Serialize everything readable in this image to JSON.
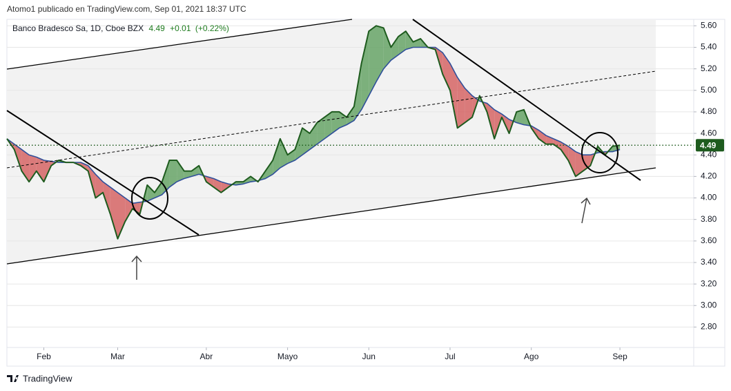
{
  "header": {
    "publisher": "Atomo1 publicado en TradingView.com, Sep 01, 2021 18:37 UTC"
  },
  "chart_data": {
    "type": "line",
    "symbol": "Banco Bradesco Sa, 1D, Cboe BZX",
    "quote": "4.49",
    "change": "+0.01",
    "change_pct": "(+0.22%)",
    "categories": [
      null,
      null,
      null,
      null,
      null,
      "Feb",
      null,
      null,
      null,
      null,
      null,
      null,
      null,
      null,
      null,
      "Mar",
      null,
      null,
      null,
      null,
      null,
      null,
      null,
      null,
      null,
      null,
      null,
      "Abr",
      null,
      null,
      null,
      null,
      null,
      null,
      null,
      null,
      null,
      null,
      "Mayo",
      null,
      null,
      null,
      null,
      null,
      null,
      null,
      null,
      null,
      null,
      "Jun",
      null,
      null,
      null,
      null,
      null,
      null,
      null,
      null,
      null,
      null,
      "Jul",
      null,
      null,
      null,
      null,
      null,
      null,
      null,
      null,
      null,
      null,
      "Ago",
      null,
      null,
      null,
      null,
      null,
      null,
      null,
      null,
      null,
      null,
      null,
      "Sep",
      null,
      null,
      null,
      null,
      null,
      null,
      null,
      null,
      null,
      null
    ],
    "series": [
      {
        "color": "#1e5b1e",
        "values": [
          4.55,
          4.45,
          4.25,
          4.15,
          4.25,
          4.15,
          4.3,
          4.35,
          4.33,
          4.33,
          4.3,
          4.25,
          4.0,
          4.05,
          3.85,
          3.62,
          3.78,
          3.9,
          3.85,
          4.12,
          4.05,
          4.15,
          4.35,
          4.35,
          4.25,
          4.25,
          4.3,
          4.15,
          4.1,
          4.05,
          4.1,
          4.15,
          4.15,
          4.2,
          4.15,
          4.25,
          4.35,
          4.55,
          4.4,
          4.45,
          4.65,
          4.6,
          4.7,
          4.75,
          4.8,
          4.8,
          4.75,
          4.85,
          5.25,
          5.55,
          5.6,
          5.58,
          5.4,
          5.5,
          5.55,
          5.45,
          5.48,
          5.4,
          5.38,
          5.15,
          5.0,
          4.65,
          4.7,
          4.75,
          4.95,
          4.8,
          4.55,
          4.75,
          4.6,
          4.8,
          4.82,
          4.65,
          4.55,
          4.5,
          4.5,
          4.45,
          4.35,
          4.2,
          4.25,
          4.3,
          4.48,
          4.4,
          4.48,
          4.49,
          null,
          null,
          null,
          null,
          null,
          null,
          null,
          null,
          null,
          null
        ]
      },
      {
        "color": "#2f4f9a",
        "values": [
          4.55,
          4.5,
          4.45,
          4.4,
          4.38,
          4.35,
          4.34,
          4.33,
          4.33,
          4.33,
          4.33,
          4.3,
          4.22,
          4.15,
          4.1,
          4.05,
          4.0,
          3.95,
          3.96,
          3.97,
          4.0,
          4.03,
          4.1,
          4.15,
          4.18,
          4.2,
          4.22,
          4.2,
          4.18,
          4.15,
          4.13,
          4.12,
          4.13,
          4.15,
          4.16,
          4.18,
          4.22,
          4.28,
          4.32,
          4.35,
          4.4,
          4.45,
          4.5,
          4.55,
          4.6,
          4.65,
          4.68,
          4.72,
          4.82,
          4.95,
          5.08,
          5.2,
          5.28,
          5.33,
          5.38,
          5.4,
          5.4,
          5.4,
          5.4,
          5.35,
          5.25,
          5.12,
          5.02,
          4.95,
          4.9,
          4.88,
          4.82,
          4.78,
          4.73,
          4.7,
          4.68,
          4.67,
          4.63,
          4.58,
          4.55,
          4.52,
          4.48,
          4.43,
          4.4,
          4.4,
          4.42,
          4.43,
          4.43,
          4.45,
          null,
          null,
          null,
          null,
          null,
          null,
          null,
          null,
          null,
          null
        ]
      }
    ],
    "fill_up": "#5e9f5e",
    "fill_down": "#d35b5b",
    "last_price": 4.49,
    "ylim": [
      2.61,
      5.66
    ],
    "yticks": [
      {
        "value": 2.8,
        "label": "2.80"
      },
      {
        "value": 3.0,
        "label": "3.00"
      },
      {
        "value": 3.2,
        "label": "3.20"
      },
      {
        "value": 3.4,
        "label": "3.40"
      },
      {
        "value": 3.6,
        "label": "3.60"
      },
      {
        "value": 3.8,
        "label": "3.80"
      },
      {
        "value": 4.0,
        "label": "4.00"
      },
      {
        "value": 4.2,
        "label": "4.20"
      },
      {
        "value": 4.4,
        "label": "4.40"
      },
      {
        "value": 4.6,
        "label": "4.60"
      },
      {
        "value": 4.8,
        "label": "4.80"
      },
      {
        "value": 5.0,
        "label": "5.00"
      },
      {
        "value": 5.2,
        "label": "5.20"
      },
      {
        "value": 5.4,
        "label": "5.40"
      },
      {
        "value": 5.6,
        "label": "5.60"
      }
    ],
    "grid": true
  },
  "footer": {
    "brand": "TradingView"
  }
}
